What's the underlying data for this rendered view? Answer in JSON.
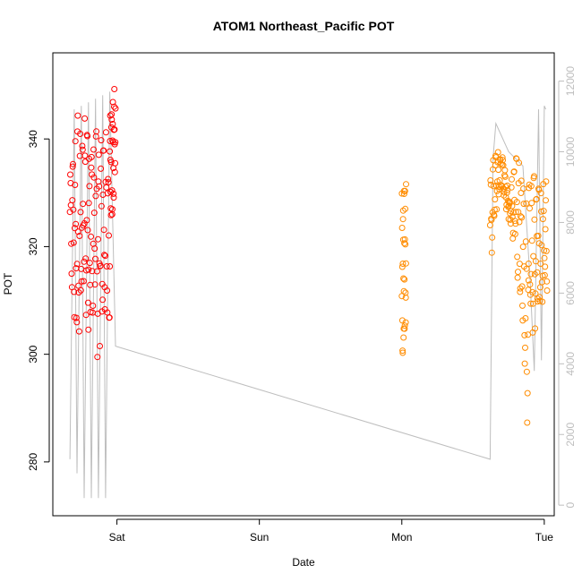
{
  "chart_data": {
    "type": "scatter",
    "title": "ATOM1 Northeast_Pacific POT",
    "xlabel": "Date",
    "ylabel": "POT",
    "x_unit": "days from Friday 00:00",
    "x_ticks": [
      {
        "label": "Sat",
        "value": 1
      },
      {
        "label": "Sun",
        "value": 2
      },
      {
        "label": "Mon",
        "value": 3
      },
      {
        "label": "Tue",
        "value": 4
      }
    ],
    "xlim": [
      0.55,
      4.07
    ],
    "ylim": [
      270,
      356
    ],
    "y_ticks": [
      280,
      300,
      320,
      340
    ],
    "y2_ticks": [
      0,
      2000,
      4000,
      6000,
      8000,
      10000,
      12000
    ],
    "y2lim": [
      -300,
      12800
    ],
    "grid": false,
    "series": [
      {
        "name": "",
        "kind": "points",
        "color": "#ff0000",
        "segments": [
          {
            "x_start": 0.67,
            "x_end": 0.8,
            "lows": [
              315,
              302,
              297,
              310,
              298
            ],
            "highs": [
              338,
              344,
              346,
              347,
              346
            ]
          },
          {
            "x_start": 0.8,
            "x_end": 0.95,
            "lows": [
              298,
              303,
              297,
              300,
              299
            ],
            "highs": [
              345,
              344,
              347,
              346,
              347
            ]
          },
          {
            "x_start": 0.95,
            "x_end": 0.99,
            "lows": [
              322,
              325,
              330
            ],
            "highs": [
              348,
              352,
              351
            ]
          }
        ]
      },
      {
        "name": "",
        "kind": "points",
        "color": "#ff8c00",
        "segments": [
          {
            "x_start": 3.0,
            "x_end": 3.03,
            "lows": [
              297
            ],
            "highs": [
              334
            ]
          },
          {
            "x_start": 3.62,
            "x_end": 3.75,
            "lows": [
              311,
              326,
              330,
              324
            ],
            "highs": [
              335,
              340,
              338,
              332
            ]
          },
          {
            "x_start": 3.75,
            "x_end": 3.89,
            "lows": [
              327,
              316,
              306,
              272
            ],
            "highs": [
              328,
              339,
              334,
              330
            ]
          },
          {
            "x_start": 3.89,
            "x_end": 4.02,
            "lows": [
              302,
              305,
              307
            ],
            "highs": [
              334,
              336,
              333
            ]
          }
        ]
      },
      {
        "name": "",
        "kind": "line",
        "axis": "right",
        "color": "#bebebe",
        "x": [
          0.67,
          0.7,
          0.72,
          0.75,
          0.77,
          0.8,
          0.82,
          0.85,
          0.87,
          0.9,
          0.92,
          0.95,
          0.99,
          3.62,
          3.64,
          3.66,
          3.75,
          3.85,
          3.9,
          3.93,
          3.96,
          3.98,
          4.0,
          4.01
        ],
        "y": [
          1300,
          11200,
          900,
          11300,
          200,
          11400,
          200,
          11500,
          200,
          11600,
          200,
          11700,
          4500,
          1300,
          9800,
          10800,
          10000,
          9600,
          6400,
          3800,
          11200,
          4100,
          11300,
          11200
        ]
      }
    ]
  }
}
